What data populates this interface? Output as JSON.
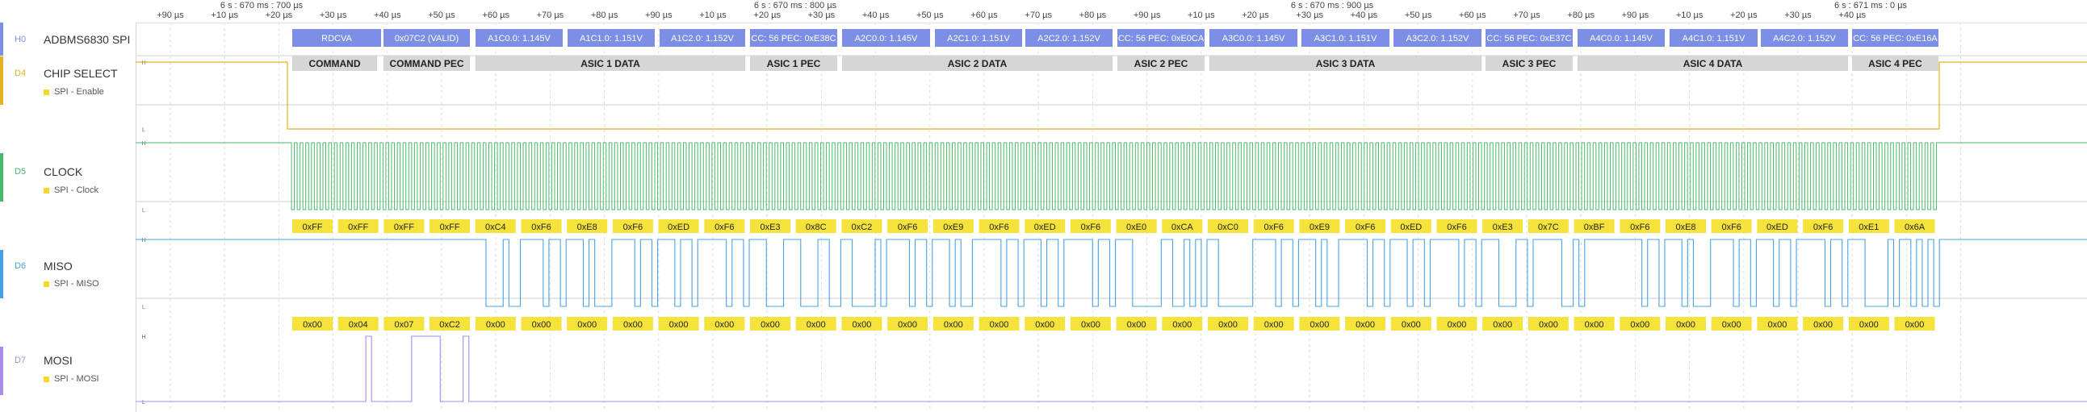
{
  "timeline": {
    "ticks": [
      "+90 µs",
      "+10 µs",
      "+20 µs",
      "+30 µs",
      "+40 µs",
      "+50 µs",
      "+60 µs",
      "+70 µs",
      "+80 µs",
      "+90 µs",
      "+10 µs",
      "+20 µs",
      "+30 µs",
      "+40 µs",
      "+50 µs",
      "+60 µs",
      "+70 µs",
      "+80 µs",
      "+90 µs",
      "+10 µs",
      "+20 µs",
      "+30 µs",
      "+40 µs",
      "+50 µs",
      "+60 µs",
      "+70 µs",
      "+80 µs",
      "+90 µs",
      "+10 µs",
      "+20 µs",
      "+30 µs",
      "+40 µs"
    ],
    "markers": [
      "6 s : 670 ms : 700 µs",
      "6 s : 670 ms : 800 µs",
      "6 s : 670 ms : 900 µs",
      "6 s : 671 ms : 0 µs"
    ]
  },
  "channels": {
    "spi": {
      "id": "H0",
      "name": "ADBMS6830 SPI",
      "color": "#7c8ee6",
      "frames": [
        "RDCVA",
        "0x07C2 (VALID)",
        "A1C0.0: 1.145V",
        "A1C1.0: 1.151V",
        "A1C2.0: 1.152V",
        "CC: 56 PEC: 0xE38C",
        "A2C0.0: 1.145V",
        "A2C1.0: 1.151V",
        "A2C2.0: 1.152V",
        "CC: 56 PEC: 0xE0CA",
        "A3C0.0: 1.145V",
        "A3C1.0: 1.151V",
        "A3C2.0: 1.152V",
        "CC: 56 PEC: 0xE37C",
        "A4C0.0: 1.145V",
        "A4C1.0: 1.151V",
        "A4C2.0: 1.152V",
        "CC: 56 PEC: 0xE16A"
      ],
      "groups": [
        "COMMAND",
        "COMMAND PEC",
        "ASIC 1 DATA",
        "ASIC 1 PEC",
        "ASIC 2 DATA",
        "ASIC 2 PEC",
        "ASIC 3 DATA",
        "ASIC 3 PEC",
        "ASIC 4 DATA",
        "ASIC 4 PEC"
      ]
    },
    "chip_select": {
      "id": "D4",
      "name": "CHIP SELECT",
      "analyzer": "SPI - Enable",
      "color": "#e3b020"
    },
    "clock": {
      "id": "D5",
      "name": "CLOCK",
      "analyzer": "SPI - Clock",
      "color": "#49b96b"
    },
    "miso": {
      "id": "D6",
      "name": "MISO",
      "analyzer": "SPI - MISO",
      "color": "#4aa0e6",
      "bytes": [
        "0xFF",
        "0xFF",
        "0xFF",
        "0xFF",
        "0xC4",
        "0xF6",
        "0xE8",
        "0xF6",
        "0xED",
        "0xF6",
        "0xE3",
        "0x8C",
        "0xC2",
        "0xF6",
        "0xE9",
        "0xF6",
        "0xED",
        "0xF6",
        "0xE0",
        "0xCA",
        "0xC0",
        "0xF6",
        "0xE9",
        "0xF6",
        "0xED",
        "0xF6",
        "0xE3",
        "0x7C",
        "0xBF",
        "0xF6",
        "0xE8",
        "0xF6",
        "0xED",
        "0xF6",
        "0xE1",
        "0x6A"
      ]
    },
    "mosi": {
      "id": "D7",
      "name": "MOSI",
      "analyzer": "SPI - MOSI",
      "color": "#a98be8",
      "bytes": [
        "0x00",
        "0x04",
        "0x07",
        "0xC2",
        "0x00",
        "0x00",
        "0x00",
        "0x00",
        "0x00",
        "0x00",
        "0x00",
        "0x00",
        "0x00",
        "0x00",
        "0x00",
        "0x00",
        "0x00",
        "0x00",
        "0x00",
        "0x00",
        "0x00",
        "0x00",
        "0x00",
        "0x00",
        "0x00",
        "0x00",
        "0x00",
        "0x00",
        "0x00",
        "0x00",
        "0x00",
        "0x00",
        "0x00",
        "0x00",
        "0x00",
        "0x00"
      ]
    }
  },
  "level_labels": {
    "high": "H",
    "low": "L"
  },
  "colors": {
    "byte_fill": "#f5e33c",
    "frame_fill": "#7c8ee6",
    "group_fill": "#d6d6d6",
    "grid": "#dcdcdc"
  }
}
